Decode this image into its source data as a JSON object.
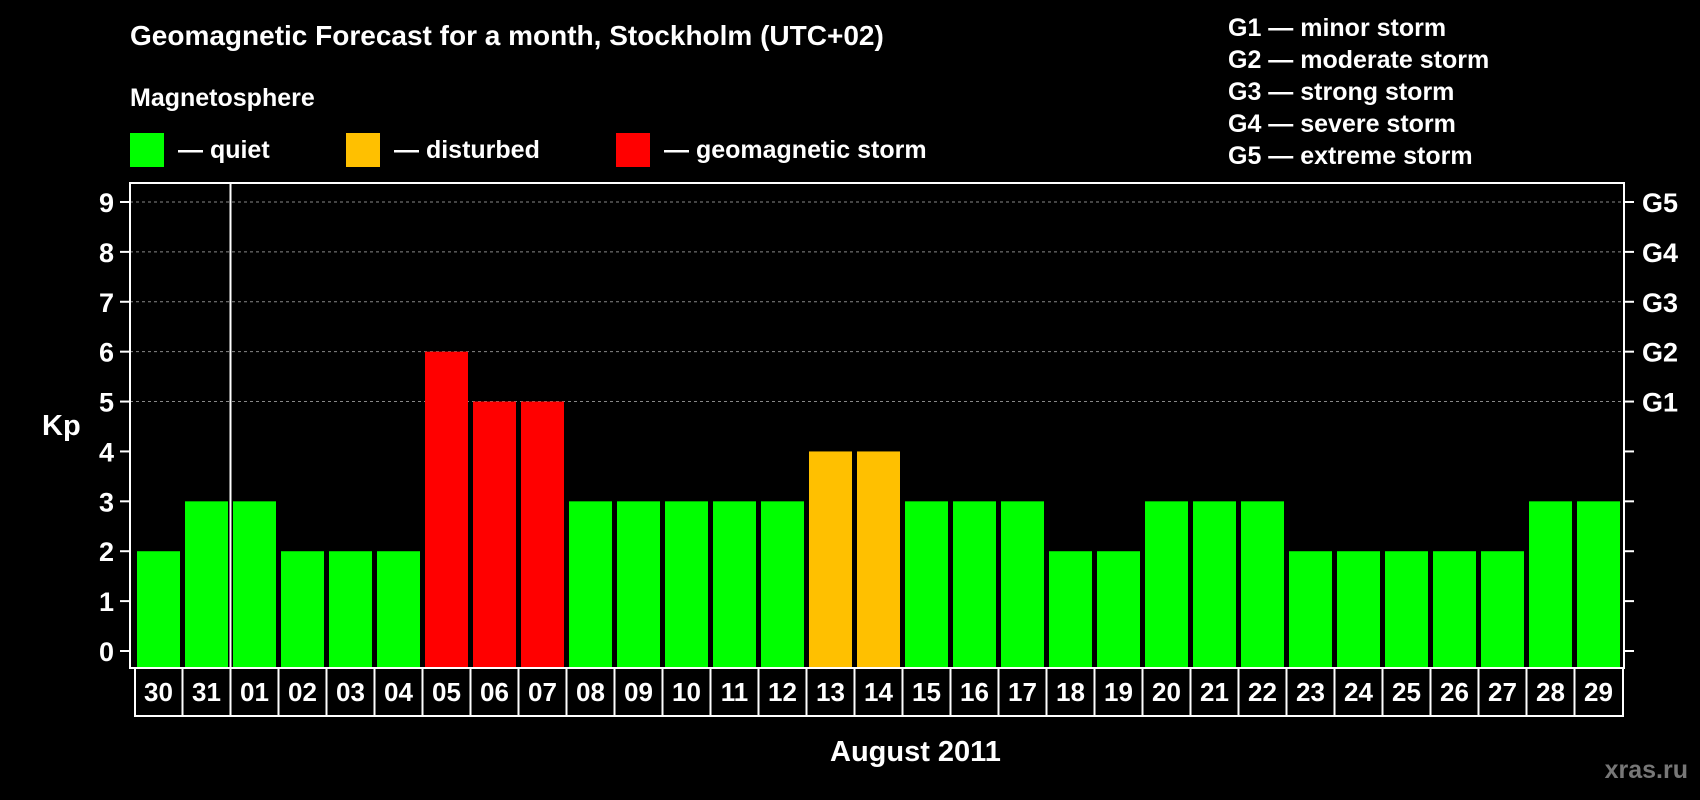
{
  "title": "Geomagnetic Forecast for a month, Stockholm (UTC+02)",
  "legend": {
    "heading": "Magnetosphere",
    "items": [
      {
        "label": "— quiet",
        "color": "#00ff00"
      },
      {
        "label": "— disturbed",
        "color": "#ffc000"
      },
      {
        "label": "— geomagnetic storm",
        "color": "#ff0000"
      }
    ]
  },
  "storm_scale": [
    {
      "label": "G1 — minor storm"
    },
    {
      "label": "G2 — moderate storm"
    },
    {
      "label": "G3 — strong storm"
    },
    {
      "label": "G4 — severe storm"
    },
    {
      "label": "G5 — extreme storm"
    }
  ],
  "watermark": "xras.ru",
  "chart_data": {
    "type": "bar",
    "categories": [
      "30",
      "31",
      "01",
      "02",
      "03",
      "04",
      "05",
      "06",
      "07",
      "08",
      "09",
      "10",
      "11",
      "12",
      "13",
      "14",
      "15",
      "16",
      "17",
      "18",
      "19",
      "20",
      "21",
      "22",
      "23",
      "24",
      "25",
      "26",
      "27",
      "28",
      "29"
    ],
    "values": [
      2,
      3,
      3,
      2,
      2,
      2,
      6,
      5,
      5,
      3,
      3,
      3,
      3,
      3,
      4,
      4,
      3,
      3,
      3,
      2,
      2,
      3,
      3,
      3,
      2,
      2,
      2,
      2,
      2,
      3,
      3
    ],
    "colors": [
      "#00ff00",
      "#00ff00",
      "#00ff00",
      "#00ff00",
      "#00ff00",
      "#00ff00",
      "#ff0000",
      "#ff0000",
      "#ff0000",
      "#00ff00",
      "#00ff00",
      "#00ff00",
      "#00ff00",
      "#00ff00",
      "#ffc000",
      "#ffc000",
      "#00ff00",
      "#00ff00",
      "#00ff00",
      "#00ff00",
      "#00ff00",
      "#00ff00",
      "#00ff00",
      "#00ff00",
      "#00ff00",
      "#00ff00",
      "#00ff00",
      "#00ff00",
      "#00ff00",
      "#00ff00",
      "#00ff00"
    ],
    "ylabel": "Kp",
    "xlabel": "August 2011",
    "ylim": [
      0,
      9
    ],
    "yticks": [
      0,
      1,
      2,
      3,
      4,
      5,
      6,
      7,
      8,
      9
    ],
    "month_divider_after_category": "31",
    "right_axis": [
      {
        "value": 5,
        "label": "G1"
      },
      {
        "value": 6,
        "label": "G2"
      },
      {
        "value": 7,
        "label": "G3"
      },
      {
        "value": 8,
        "label": "G4"
      },
      {
        "value": 9,
        "label": "G5"
      }
    ],
    "gridlines": "dashed at Kp 5-9"
  }
}
